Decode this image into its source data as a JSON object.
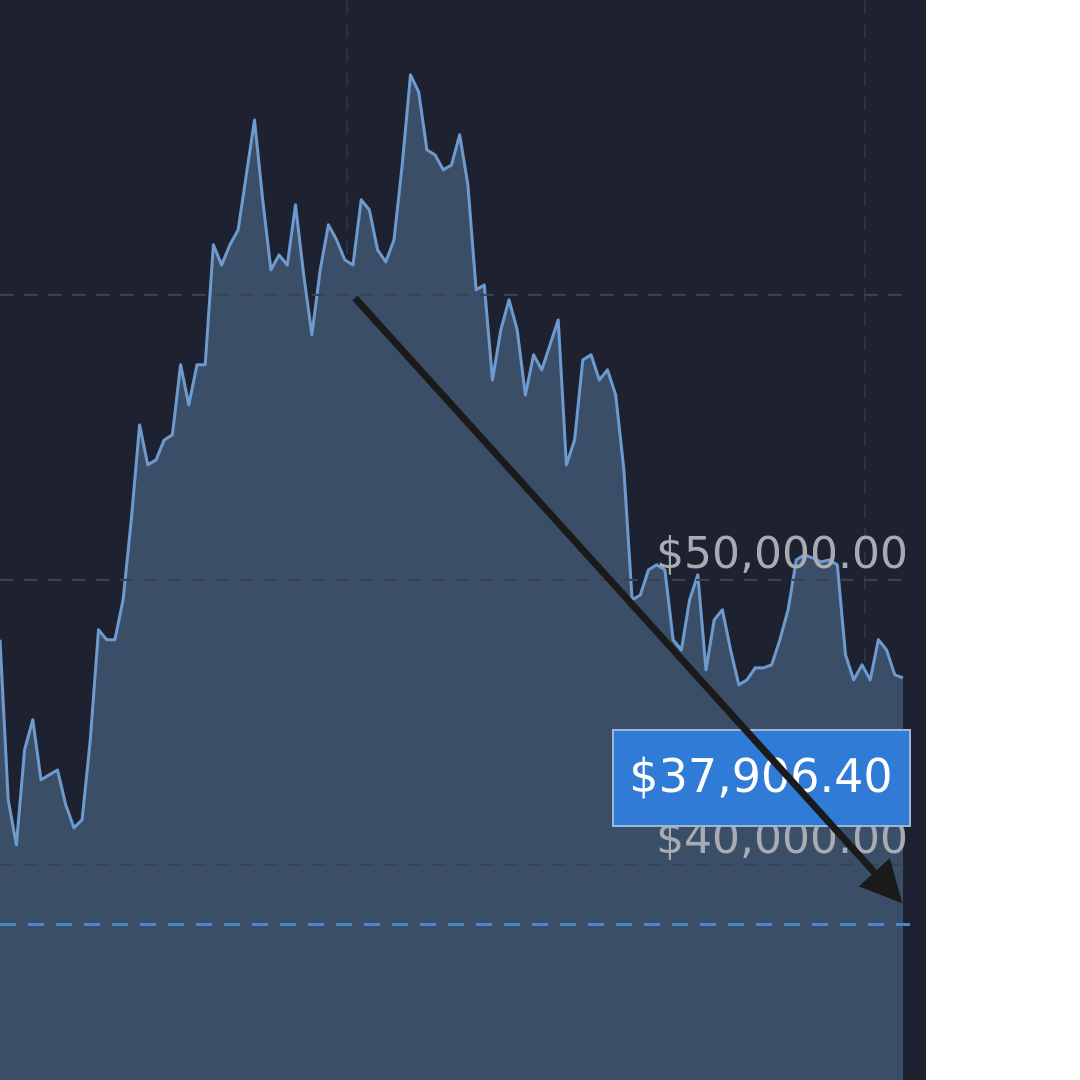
{
  "chart_data": {
    "type": "area",
    "values": [
      47900,
      42280,
      40700,
      44040,
      45090,
      42980,
      43160,
      43330,
      42110,
      41300,
      41580,
      44390,
      48250,
      47900,
      47900,
      49300,
      52110,
      55440,
      54040,
      54210,
      54910,
      55090,
      57550,
      56140,
      57550,
      57550,
      61760,
      61050,
      61760,
      62280,
      64210,
      66140,
      63340,
      60880,
      61400,
      61050,
      63160,
      60700,
      58600,
      60880,
      62460,
      61930,
      61230,
      61050,
      63340,
      62980,
      61580,
      61160,
      61930,
      64560,
      67720,
      67120,
      65090,
      64910,
      64390,
      64560,
      65620,
      63860,
      60180,
      60350,
      57020,
      58770,
      59830,
      58770,
      56490,
      57900,
      57370,
      58250,
      59120,
      54040,
      54910,
      57720,
      57900,
      57020,
      57370,
      56490,
      53860,
      49300,
      49470,
      50350,
      50530,
      50350,
      47900,
      47540,
      49300,
      50180,
      46840,
      48600,
      48950,
      47540,
      46320,
      46490,
      46910,
      46910,
      47020,
      47900,
      48950,
      50700,
      50880,
      50770,
      50630,
      50700,
      50530,
      47370,
      46490,
      47020,
      46490,
      47900,
      47540,
      46670,
      46560
    ],
    "color": "#6e9bcf",
    "fill": "#3b4e67",
    "ylim": [
      32450,
      70350
    ],
    "yticks": [
      {
        "value": 40000,
        "label": "$40,000.00"
      },
      {
        "value": 50000,
        "label": "$50,000.00"
      },
      {
        "value": 60000,
        "label": null
      }
    ],
    "grid": true,
    "current_price": 37906.4,
    "current_price_label": "$37,906.40"
  }
}
